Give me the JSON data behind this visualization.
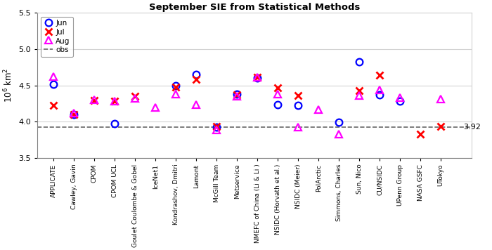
{
  "groups": [
    "APPLICATE",
    "Cawley, Gavin",
    "CPOM",
    "CPOM UCL",
    "Goulet Coulombe & Gobel",
    "IceNet1",
    "Kondrashov, Dmitri",
    "Lamont",
    "McGill Team",
    "Metservice",
    "NMEFC of China (Li & Li )",
    "NSIDC (Horvath et al.)",
    "NSIDC (Meier)",
    "PolArctic",
    "Simmons, Charles",
    "Sun, Nico",
    "CU/NSIDC",
    "UPenn Group",
    "NASA GSFC",
    "UTokyo"
  ],
  "jun": [
    4.51,
    4.1,
    null,
    3.97,
    null,
    null,
    4.5,
    4.65,
    3.92,
    4.38,
    4.6,
    4.23,
    4.22,
    null,
    3.99,
    4.82,
    4.37,
    4.28,
    null,
    null
  ],
  "jul": [
    4.22,
    4.1,
    4.29,
    4.28,
    4.35,
    null,
    4.48,
    4.58,
    3.93,
    4.37,
    4.61,
    4.47,
    4.36,
    null,
    null,
    4.43,
    4.64,
    null,
    3.83,
    3.93
  ],
  "aug": [
    4.62,
    4.12,
    4.3,
    4.28,
    4.32,
    4.19,
    4.38,
    4.23,
    3.88,
    4.35,
    4.61,
    4.38,
    3.92,
    4.17,
    3.83,
    4.36,
    4.44,
    4.33,
    null,
    4.31
  ],
  "obs": 3.92,
  "title": "September SIE from Statistical Methods",
  "ylabel": "$10^6$ km$^2$",
  "ylim": [
    3.5,
    5.5
  ],
  "yticks": [
    3.5,
    4.0,
    4.5,
    5.0,
    5.5
  ],
  "jun_color": "blue",
  "jul_color": "red",
  "aug_color": "magenta",
  "obs_color": "#666666",
  "obs_annotation": "3.92",
  "legend_labels": [
    "Jun",
    "Jul",
    "Aug",
    "obs"
  ]
}
